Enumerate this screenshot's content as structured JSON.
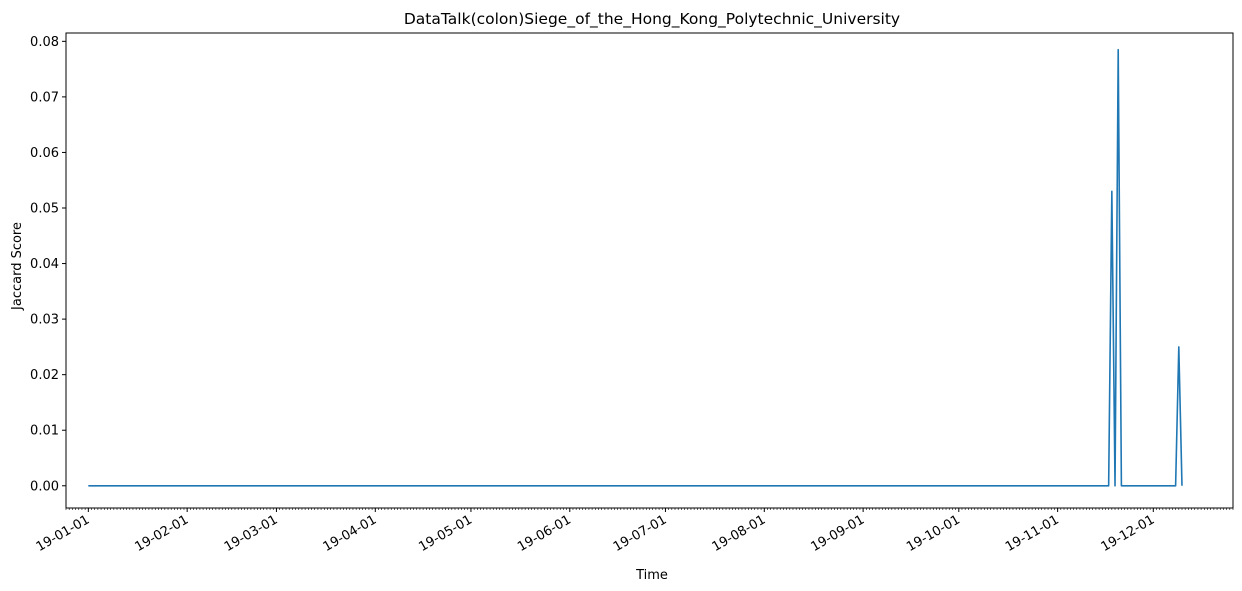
{
  "chart_data": {
    "type": "line",
    "title": "DataTalk(colon)Siege_of_the_Hong_Kong_Polytechnic_University",
    "xlabel": "Time",
    "ylabel": "Jaccard Score",
    "xlim": [
      "2018-12-25",
      "2019-12-26"
    ],
    "ylim": [
      -0.004,
      0.0815
    ],
    "grid": false,
    "legend": "none",
    "line_color": "#1f77b4",
    "x_ticks": [
      {
        "date": "2019-01-01",
        "label": "19-01-01"
      },
      {
        "date": "2019-02-01",
        "label": "19-02-01"
      },
      {
        "date": "2019-03-01",
        "label": "19-03-01"
      },
      {
        "date": "2019-04-01",
        "label": "19-04-01"
      },
      {
        "date": "2019-05-01",
        "label": "19-05-01"
      },
      {
        "date": "2019-06-01",
        "label": "19-06-01"
      },
      {
        "date": "2019-07-01",
        "label": "19-07-01"
      },
      {
        "date": "2019-08-01",
        "label": "19-08-01"
      },
      {
        "date": "2019-09-01",
        "label": "19-09-01"
      },
      {
        "date": "2019-10-01",
        "label": "19-10-01"
      },
      {
        "date": "2019-11-01",
        "label": "19-11-01"
      },
      {
        "date": "2019-12-01",
        "label": "19-12-01"
      }
    ],
    "y_ticks": [
      {
        "value": 0.0,
        "label": "0.00"
      },
      {
        "value": 0.01,
        "label": "0.01"
      },
      {
        "value": 0.02,
        "label": "0.02"
      },
      {
        "value": 0.03,
        "label": "0.03"
      },
      {
        "value": 0.04,
        "label": "0.04"
      },
      {
        "value": 0.05,
        "label": "0.05"
      },
      {
        "value": 0.06,
        "label": "0.06"
      },
      {
        "value": 0.07,
        "label": "0.07"
      },
      {
        "value": 0.08,
        "label": "0.08"
      }
    ],
    "series": [
      {
        "x": [
          "2019-01-01",
          "2019-11-17",
          "2019-11-18",
          "2019-11-19",
          "2019-11-20",
          "2019-11-21",
          "2019-12-08",
          "2019-12-09",
          "2019-12-10"
        ],
        "y": [
          0,
          0,
          0.053,
          0,
          0.0785,
          0,
          0,
          0.025,
          0
        ]
      }
    ]
  }
}
